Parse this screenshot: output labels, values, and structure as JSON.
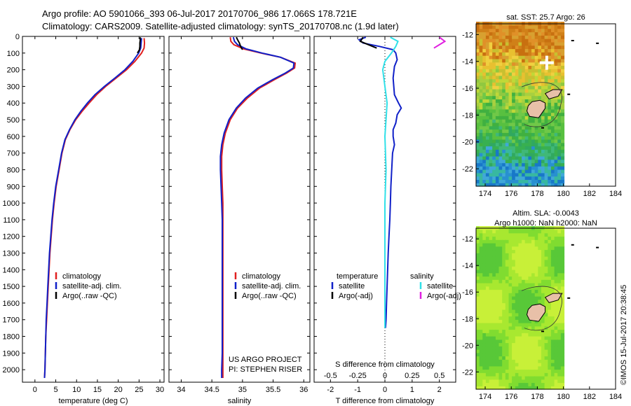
{
  "header": {
    "line1": "Argo profile: AO 5901066_393 06-Jul-2017 20170706_986 17.066S 178.721E",
    "line2": "Climatology: CARS2009. Satellite-adjusted climatology: synTS_20170708.nc (1.9d later)"
  },
  "credit": "US ARGO PROJECT\nPI: STEPHEN RISER",
  "watermark": "©IMOS 15-Jul-2017 20:38:45",
  "colors": {
    "climatology": "#e02020",
    "satellite": "#1020c8",
    "argo": "#000000",
    "sal_satellite": "#30e0e8",
    "sal_argo": "#e020e0"
  },
  "chart_data": [
    {
      "type": "line",
      "id": "temperature",
      "xlabel": "temperature (deg C)",
      "ylabel": "",
      "xlim": [
        -3,
        31
      ],
      "ylim": [
        2075,
        0
      ],
      "xticks": [
        0,
        5,
        10,
        15,
        20,
        25,
        30
      ],
      "yticks": [
        0,
        100,
        200,
        300,
        400,
        500,
        600,
        700,
        800,
        900,
        1000,
        1100,
        1200,
        1300,
        1400,
        1500,
        1600,
        1700,
        1800,
        1900,
        2000
      ],
      "legend": [
        "climatology",
        "satellite-adj. clim.",
        "Argo(..raw -QC)"
      ],
      "series": [
        {
          "name": "climatology",
          "color": "#e02020",
          "points": [
            [
              26.2,
              10
            ],
            [
              26.3,
              40
            ],
            [
              26.2,
              70
            ],
            [
              25.6,
              100
            ],
            [
              24.0,
              150
            ],
            [
              22.0,
              200
            ],
            [
              19.5,
              250
            ],
            [
              17.0,
              300
            ],
            [
              14.8,
              350
            ],
            [
              13.0,
              400
            ],
            [
              11.3,
              450
            ],
            [
              9.8,
              500
            ],
            [
              8.4,
              560
            ],
            [
              7.3,
              620
            ],
            [
              6.5,
              700
            ],
            [
              5.8,
              800
            ],
            [
              5.1,
              900
            ],
            [
              4.6,
              1000
            ],
            [
              4.2,
              1100
            ],
            [
              3.9,
              1200
            ],
            [
              3.6,
              1300
            ],
            [
              3.4,
              1400
            ],
            [
              3.2,
              1500
            ],
            [
              3.0,
              1600
            ],
            [
              2.8,
              1700
            ],
            [
              2.6,
              1800
            ],
            [
              2.5,
              1900
            ],
            [
              2.4,
              2000
            ],
            [
              2.3,
              2050
            ]
          ]
        },
        {
          "name": "satellite-adj. clim.",
          "color": "#1020c8",
          "points": [
            [
              25.6,
              10
            ],
            [
              25.5,
              40
            ],
            [
              25.4,
              70
            ],
            [
              24.9,
              100
            ],
            [
              23.5,
              150
            ],
            [
              21.6,
              200
            ],
            [
              19.2,
              250
            ],
            [
              16.7,
              300
            ],
            [
              14.4,
              350
            ],
            [
              12.6,
              400
            ],
            [
              11.0,
              450
            ],
            [
              9.6,
              500
            ],
            [
              8.3,
              560
            ],
            [
              7.2,
              620
            ],
            [
              6.4,
              700
            ],
            [
              5.7,
              800
            ],
            [
              5.0,
              900
            ],
            [
              4.5,
              1000
            ],
            [
              4.1,
              1100
            ],
            [
              3.8,
              1200
            ],
            [
              3.5,
              1300
            ],
            [
              3.3,
              1400
            ],
            [
              3.1,
              1500
            ],
            [
              2.9,
              1600
            ],
            [
              2.7,
              1700
            ],
            [
              2.6,
              1800
            ],
            [
              2.5,
              1900
            ],
            [
              2.4,
              2000
            ],
            [
              2.3,
              2050
            ]
          ]
        },
        {
          "name": "Argo(..raw -QC)",
          "color": "#000000",
          "points": [
            [
              25.3,
              5
            ],
            [
              25.3,
              20
            ],
            [
              25.2,
              40
            ],
            [
              25.2,
              60
            ],
            [
              25.1,
              80
            ],
            [
              24.6,
              100
            ]
          ]
        }
      ]
    },
    {
      "type": "line",
      "id": "salinity",
      "xlabel": "salinity",
      "ylabel": "",
      "xlim": [
        33.8,
        36.1
      ],
      "ylim": [
        2075,
        0
      ],
      "xticks": [
        34,
        34.5,
        35,
        35.5,
        36
      ],
      "legend": [
        "climatology",
        "satellite-adj. clim.",
        "Argo(..raw -QC)"
      ],
      "series": [
        {
          "name": "climatology",
          "color": "#e02020",
          "points": [
            [
              34.8,
              5
            ],
            [
              34.81,
              30
            ],
            [
              34.86,
              50
            ],
            [
              35.02,
              75
            ],
            [
              35.3,
              100
            ],
            [
              35.62,
              125
            ],
            [
              35.86,
              160
            ],
            [
              35.85,
              190
            ],
            [
              35.72,
              220
            ],
            [
              35.52,
              260
            ],
            [
              35.28,
              310
            ],
            [
              35.08,
              370
            ],
            [
              34.92,
              430
            ],
            [
              34.8,
              500
            ],
            [
              34.72,
              580
            ],
            [
              34.68,
              650
            ],
            [
              34.66,
              720
            ],
            [
              34.66,
              800
            ],
            [
              34.67,
              900
            ],
            [
              34.68,
              1000
            ],
            [
              34.68,
              1100
            ],
            [
              34.68,
              1200
            ],
            [
              34.68,
              1300
            ],
            [
              34.68,
              1400
            ],
            [
              34.68,
              1500
            ],
            [
              34.68,
              1600
            ],
            [
              34.68,
              1700
            ],
            [
              34.68,
              1800
            ],
            [
              34.68,
              1900
            ],
            [
              34.68,
              2000
            ],
            [
              34.68,
              2050
            ]
          ]
        },
        {
          "name": "satellite-adj. clim.",
          "color": "#1020c8",
          "points": [
            [
              34.85,
              5
            ],
            [
              34.87,
              30
            ],
            [
              34.92,
              50
            ],
            [
              35.06,
              75
            ],
            [
              35.32,
              100
            ],
            [
              35.62,
              125
            ],
            [
              35.84,
              160
            ],
            [
              35.83,
              190
            ],
            [
              35.7,
              220
            ],
            [
              35.49,
              260
            ],
            [
              35.25,
              310
            ],
            [
              35.05,
              370
            ],
            [
              34.9,
              430
            ],
            [
              34.78,
              500
            ],
            [
              34.7,
              580
            ],
            [
              34.66,
              650
            ],
            [
              34.64,
              720
            ],
            [
              34.64,
              800
            ],
            [
              34.65,
              900
            ],
            [
              34.66,
              1000
            ],
            [
              34.67,
              1100
            ],
            [
              34.67,
              1200
            ],
            [
              34.67,
              1300
            ],
            [
              34.67,
              1400
            ],
            [
              34.67,
              1500
            ],
            [
              34.67,
              1600
            ],
            [
              34.67,
              1700
            ],
            [
              34.67,
              1800
            ],
            [
              34.67,
              1900
            ],
            [
              34.66,
              2000
            ],
            [
              34.66,
              2050
            ]
          ]
        },
        {
          "name": "Argo(..raw -QC)",
          "color": "#000000",
          "points": [
            [
              34.9,
              5
            ],
            [
              34.92,
              20
            ],
            [
              34.95,
              40
            ],
            [
              34.97,
              60
            ],
            [
              35.0,
              80
            ]
          ]
        }
      ]
    },
    {
      "type": "line",
      "id": "difference",
      "xlabel": "T difference from climatology",
      "xlabel_top": "S difference from climatology",
      "xlim": [
        -2.6,
        2.6
      ],
      "ylim": [
        2075,
        0
      ],
      "xticks": [
        -2,
        -1,
        0,
        1,
        2
      ],
      "xticks_s": [
        -0.5,
        -0.25,
        0,
        0.25,
        0.5
      ],
      "legend_temperature_title": "temperature",
      "legend_salinity_title": "salinity",
      "legend": [
        "satellite",
        "Argo(-adj)",
        "satellite",
        "Argo(-adj)"
      ],
      "series": [
        {
          "name": "T satellite",
          "color": "#1020c8",
          "points": [
            [
              -0.7,
              5
            ],
            [
              -0.95,
              20
            ],
            [
              -0.8,
              40
            ],
            [
              -0.2,
              60
            ],
            [
              0.3,
              80
            ],
            [
              0.4,
              100
            ],
            [
              0.45,
              140
            ],
            [
              0.35,
              180
            ],
            [
              0.3,
              250
            ],
            [
              0.35,
              350
            ],
            [
              0.5,
              400
            ],
            [
              0.6,
              430
            ],
            [
              0.45,
              470
            ],
            [
              0.4,
              520
            ],
            [
              0.3,
              560
            ],
            [
              0.3,
              600
            ],
            [
              0.35,
              650
            ],
            [
              0.28,
              700
            ],
            [
              0.25,
              800
            ],
            [
              0.22,
              900
            ],
            [
              0.2,
              1000
            ],
            [
              0.18,
              1100
            ],
            [
              0.15,
              1200
            ],
            [
              0.12,
              1300
            ],
            [
              0.1,
              1400
            ],
            [
              0.08,
              1500
            ],
            [
              0.06,
              1600
            ],
            [
              0.04,
              1700
            ],
            [
              0.02,
              1750
            ]
          ]
        },
        {
          "name": "T Argo(-adj)",
          "color": "#000000",
          "points": [
            [
              -0.8,
              5
            ],
            [
              -0.9,
              30
            ],
            [
              -0.6,
              50
            ],
            [
              -0.3,
              70
            ]
          ]
        },
        {
          "name": "S satellite",
          "color": "#30e0e8",
          "points": [
            [
              0.05,
              5
            ],
            [
              0.12,
              30
            ],
            [
              0.1,
              60
            ],
            [
              0.06,
              100
            ],
            [
              0.0,
              150
            ],
            [
              -0.02,
              200
            ],
            [
              0.0,
              300
            ],
            [
              0.02,
              400
            ],
            [
              0.01,
              500
            ],
            [
              0.0,
              600
            ],
            [
              0.01,
              800
            ],
            [
              0.0,
              1000
            ],
            [
              0.0,
              1200
            ],
            [
              0.0,
              1400
            ],
            [
              0.0,
              1600
            ],
            [
              0.0,
              1750
            ]
          ]
        },
        {
          "name": "S Argo(-adj)",
          "color": "#e020e0",
          "points": [
            [
              0.5,
              5
            ],
            [
              0.55,
              30
            ],
            [
              0.5,
              50
            ],
            [
              0.45,
              70
            ]
          ]
        }
      ]
    },
    {
      "type": "heatmap",
      "id": "sst_map",
      "title": "sat. SST: 25.7 Argo: 26",
      "xlim": [
        173.3,
        184
      ],
      "ylim": [
        -23.3,
        -11.2
      ],
      "xticks": [
        174,
        176,
        178,
        180,
        182,
        184
      ],
      "yticks": [
        -12,
        -14,
        -16,
        -18,
        -20,
        -22
      ],
      "data_extent_lon": [
        173.3,
        180
      ],
      "argo_position": [
        178.721,
        -17.066
      ]
    },
    {
      "type": "heatmap",
      "id": "sla_map",
      "title": "Altim. SLA: -0.0043",
      "subtitle": "Argo h1000: NaN h2000: NaN",
      "xlim": [
        173.3,
        184
      ],
      "ylim": [
        -23.3,
        -11.2
      ],
      "xticks": [
        174,
        176,
        178,
        180,
        182,
        184
      ],
      "yticks": [
        -12,
        -14,
        -16,
        -18,
        -20,
        -22
      ],
      "data_extent_lon": [
        173.3,
        180
      ]
    }
  ]
}
